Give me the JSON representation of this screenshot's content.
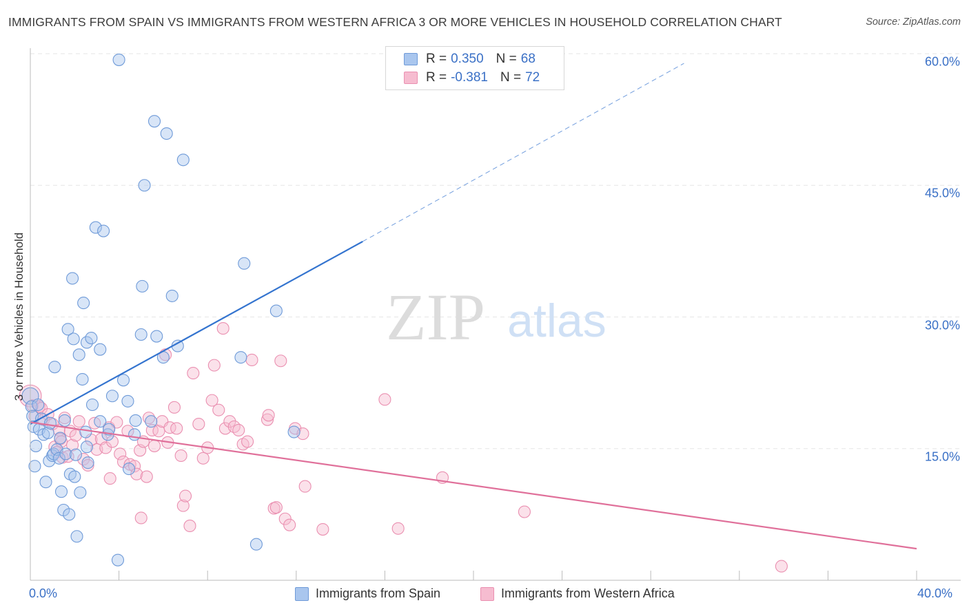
{
  "title": "IMMIGRANTS FROM SPAIN VS IMMIGRANTS FROM WESTERN AFRICA 3 OR MORE VEHICLES IN HOUSEHOLD CORRELATION CHART",
  "source": "Source: ZipAtlas.com",
  "watermark": {
    "zip": "ZIP",
    "atlas": "atlas"
  },
  "colors": {
    "blue_fill": "#a9c6ee",
    "blue_stroke": "#6e9ad8",
    "blue_line": "#3474cf",
    "pink_fill": "#f6bcd0",
    "pink_stroke": "#ea8fb0",
    "pink_line": "#e0709a",
    "axis_text": "#3a70c6",
    "grid": "#e6e6e6"
  },
  "legend": {
    "rows": [
      {
        "r_label": "R =",
        "r_value": "0.350",
        "n_label": "N =",
        "n_value": "68"
      },
      {
        "r_label": "R =",
        "r_value": "-0.381",
        "n_label": "N =",
        "n_value": "72"
      }
    ]
  },
  "series_labels": {
    "spain": "Immigrants from Spain",
    "wafrica": "Immigrants from Western Africa"
  },
  "chart_data": {
    "type": "scatter",
    "title": "IMMIGRANTS FROM SPAIN VS IMMIGRANTS FROM WESTERN AFRICA 3 OR MORE VEHICLES IN HOUSEHOLD CORRELATION CHART",
    "xlabel": "",
    "ylabel": "3 or more Vehicles in Household",
    "xlim": [
      0,
      40
    ],
    "ylim": [
      0,
      62
    ],
    "x_tick_labels": [
      "0.0%",
      "40.0%"
    ],
    "y_ticks": [
      {
        "value": 15,
        "label": "15.0%"
      },
      {
        "value": 30,
        "label": "30.0%"
      },
      {
        "value": 45,
        "label": "45.0%"
      },
      {
        "value": 60,
        "label": "60.0%"
      }
    ],
    "grid": true,
    "legend_position": "top-center",
    "series": [
      {
        "name": "Immigrants from Spain",
        "color": "blue",
        "R": 0.35,
        "N": 68,
        "trend": {
          "x0": 0,
          "y0": 17.8,
          "x1": 15,
          "y1": 38.6,
          "dash_x1": 29.5,
          "dash_y1": 58.9
        },
        "points": [
          [
            0.0,
            21.0
          ],
          [
            0.05,
            19.8
          ],
          [
            0.1,
            18.7
          ],
          [
            0.15,
            17.5
          ],
          [
            0.2,
            13.0
          ],
          [
            0.25,
            15.3
          ],
          [
            0.35,
            20.0
          ],
          [
            0.4,
            17.2
          ],
          [
            0.5,
            18.4
          ],
          [
            0.6,
            16.6
          ],
          [
            0.7,
            11.2
          ],
          [
            0.8,
            16.8
          ],
          [
            0.85,
            13.6
          ],
          [
            0.9,
            17.9
          ],
          [
            1.0,
            14.2
          ],
          [
            1.05,
            14.4
          ],
          [
            1.1,
            24.3
          ],
          [
            1.2,
            14.9
          ],
          [
            1.3,
            13.9
          ],
          [
            1.35,
            16.2
          ],
          [
            1.4,
            10.1
          ],
          [
            1.5,
            8.0
          ],
          [
            1.55,
            18.2
          ],
          [
            1.6,
            14.4
          ],
          [
            1.7,
            28.6
          ],
          [
            1.75,
            7.5
          ],
          [
            1.8,
            12.1
          ],
          [
            1.9,
            34.4
          ],
          [
            1.95,
            27.5
          ],
          [
            2.0,
            11.8
          ],
          [
            2.05,
            14.3
          ],
          [
            2.1,
            5.0
          ],
          [
            2.2,
            25.7
          ],
          [
            2.25,
            10.0
          ],
          [
            2.35,
            22.9
          ],
          [
            2.4,
            31.6
          ],
          [
            2.55,
            27.1
          ],
          [
            2.75,
            27.6
          ],
          [
            2.55,
            15.2
          ],
          [
            2.5,
            16.9
          ],
          [
            2.6,
            13.4
          ],
          [
            2.8,
            20.0
          ],
          [
            2.95,
            40.2
          ],
          [
            3.15,
            26.3
          ],
          [
            3.3,
            39.8
          ],
          [
            3.15,
            18.1
          ],
          [
            3.5,
            16.6
          ],
          [
            3.55,
            17.2
          ],
          [
            3.7,
            21.0
          ],
          [
            3.95,
            2.3
          ],
          [
            4.0,
            59.3
          ],
          [
            4.2,
            22.8
          ],
          [
            4.4,
            20.4
          ],
          [
            4.45,
            12.7
          ],
          [
            4.7,
            16.6
          ],
          [
            4.75,
            18.2
          ],
          [
            5.0,
            28.0
          ],
          [
            5.05,
            33.5
          ],
          [
            5.15,
            45.0
          ],
          [
            5.45,
            18.1
          ],
          [
            5.6,
            52.3
          ],
          [
            5.7,
            27.8
          ],
          [
            6.0,
            25.4
          ],
          [
            6.15,
            50.9
          ],
          [
            6.4,
            32.4
          ],
          [
            6.65,
            26.7
          ],
          [
            6.9,
            47.9
          ],
          [
            9.5,
            25.4
          ],
          [
            9.65,
            36.1
          ],
          [
            10.2,
            4.1
          ],
          [
            11.1,
            30.7
          ],
          [
            11.9,
            16.9
          ]
        ]
      },
      {
        "name": "Immigrants from Western Africa",
        "color": "pink",
        "R": -0.381,
        "N": 72,
        "trend": {
          "x0": 0,
          "y0": 18.0,
          "x1": 40,
          "y1": 3.6
        },
        "points": [
          [
            0.0,
            21.0
          ],
          [
            0.1,
            19.9
          ],
          [
            0.2,
            18.7
          ],
          [
            0.4,
            19.8
          ],
          [
            0.5,
            19.6
          ],
          [
            0.6,
            18.3
          ],
          [
            0.8,
            18.9
          ],
          [
            1.0,
            17.8
          ],
          [
            1.1,
            15.2
          ],
          [
            1.2,
            14.6
          ],
          [
            1.3,
            17.1
          ],
          [
            1.35,
            16.1
          ],
          [
            1.4,
            15.8
          ],
          [
            1.45,
            14.0
          ],
          [
            1.55,
            18.5
          ],
          [
            1.7,
            14.1
          ],
          [
            1.8,
            17.0
          ],
          [
            1.9,
            15.4
          ],
          [
            2.05,
            16.5
          ],
          [
            2.2,
            18.1
          ],
          [
            2.4,
            13.8
          ],
          [
            2.6,
            13.1
          ],
          [
            2.75,
            16.0
          ],
          [
            2.9,
            17.9
          ],
          [
            3.0,
            14.9
          ],
          [
            3.2,
            16.1
          ],
          [
            3.4,
            15.1
          ],
          [
            3.55,
            17.4
          ],
          [
            3.6,
            11.6
          ],
          [
            3.7,
            15.8
          ],
          [
            3.9,
            18.0
          ],
          [
            4.05,
            14.4
          ],
          [
            4.2,
            13.5
          ],
          [
            4.4,
            17.0
          ],
          [
            4.5,
            13.2
          ],
          [
            4.7,
            13.0
          ],
          [
            4.8,
            12.1
          ],
          [
            4.95,
            14.8
          ],
          [
            5.0,
            7.1
          ],
          [
            5.1,
            15.8
          ],
          [
            5.25,
            11.8
          ],
          [
            5.35,
            18.5
          ],
          [
            5.5,
            17.1
          ],
          [
            5.6,
            15.3
          ],
          [
            5.8,
            17.0
          ],
          [
            5.95,
            18.1
          ],
          [
            6.1,
            25.7
          ],
          [
            6.2,
            15.7
          ],
          [
            6.3,
            17.4
          ],
          [
            6.5,
            19.7
          ],
          [
            6.6,
            17.3
          ],
          [
            6.8,
            14.2
          ],
          [
            6.9,
            8.5
          ],
          [
            7.0,
            9.6
          ],
          [
            7.2,
            6.2
          ],
          [
            7.35,
            23.6
          ],
          [
            7.6,
            17.8
          ],
          [
            7.8,
            13.9
          ],
          [
            8.0,
            15.1
          ],
          [
            8.2,
            20.5
          ],
          [
            8.3,
            24.5
          ],
          [
            8.5,
            19.4
          ],
          [
            8.7,
            28.7
          ],
          [
            8.8,
            17.3
          ],
          [
            9.0,
            18.1
          ],
          [
            9.2,
            17.5
          ],
          [
            9.4,
            17.1
          ],
          [
            9.6,
            15.5
          ],
          [
            9.8,
            15.8
          ],
          [
            10.0,
            25.1
          ],
          [
            10.7,
            18.3
          ],
          [
            10.75,
            18.8
          ],
          [
            11.0,
            8.2
          ],
          [
            11.1,
            8.3
          ],
          [
            11.3,
            25.0
          ],
          [
            11.5,
            7.0
          ],
          [
            11.7,
            6.3
          ],
          [
            11.95,
            17.3
          ],
          [
            12.3,
            16.7
          ],
          [
            12.4,
            10.7
          ],
          [
            13.2,
            5.8
          ],
          [
            16.0,
            20.6
          ],
          [
            16.6,
            5.9
          ],
          [
            18.6,
            11.7
          ],
          [
            22.3,
            7.8
          ],
          [
            33.9,
            1.6
          ]
        ]
      }
    ]
  }
}
